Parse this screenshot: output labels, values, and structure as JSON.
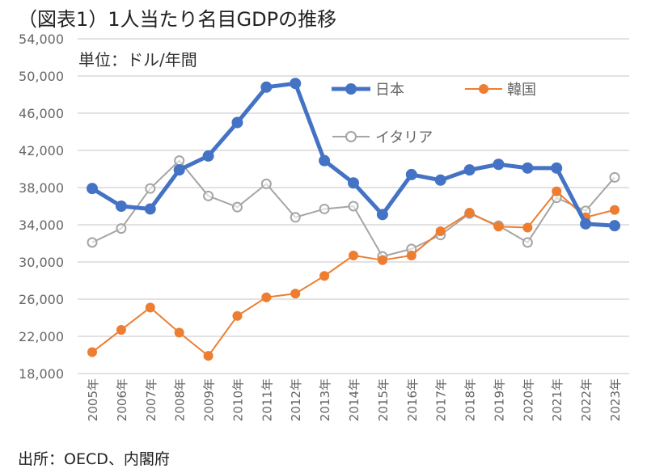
{
  "chart_data": {
    "type": "line",
    "title": "（図表1）1人当たり名目GDPの推移",
    "unit_label": "単位：ドル/年間",
    "source": "出所：OECD、内閣府",
    "xlabel": "",
    "ylabel": "",
    "ylim": [
      18000,
      54000
    ],
    "yticks": [
      18000,
      22000,
      26000,
      30000,
      34000,
      38000,
      42000,
      46000,
      50000,
      54000
    ],
    "ytick_labels": [
      "18,000",
      "22,000",
      "26,000",
      "30,000",
      "34,000",
      "38,000",
      "42,000",
      "46,000",
      "50,000",
      "54,000"
    ],
    "grid": true,
    "legend_placement": "top-right",
    "categories": [
      "2005年",
      "2006年",
      "2007年",
      "2008年",
      "2009年",
      "2010年",
      "2011年",
      "2012年",
      "2013年",
      "2014年",
      "2015年",
      "2016年",
      "2017年",
      "2018年",
      "2019年",
      "2020年",
      "2021年",
      "2022年",
      "2023年"
    ],
    "series": [
      {
        "name": "日本",
        "color": "#4472C4",
        "marker": "filled-circle",
        "values": [
          37900,
          36000,
          35700,
          39900,
          41400,
          45000,
          48800,
          49200,
          40900,
          38500,
          35100,
          39400,
          38800,
          39900,
          40500,
          40100,
          40100,
          34100,
          33900
        ]
      },
      {
        "name": "韓国",
        "color": "#ED7D31",
        "marker": "filled-circle",
        "values": [
          20300,
          22700,
          25100,
          22400,
          19900,
          24200,
          26200,
          26600,
          28500,
          30700,
          30200,
          30700,
          33300,
          35300,
          33800,
          33700,
          37600,
          34800,
          35600
        ]
      },
      {
        "name": "イタリア",
        "color": "#A5A5A5",
        "marker": "open-circle",
        "values": [
          32100,
          33600,
          37900,
          40900,
          37100,
          35900,
          38400,
          34800,
          35700,
          36000,
          30600,
          31400,
          32900,
          35200,
          33900,
          32100,
          36900,
          35500,
          39100
        ]
      }
    ]
  }
}
